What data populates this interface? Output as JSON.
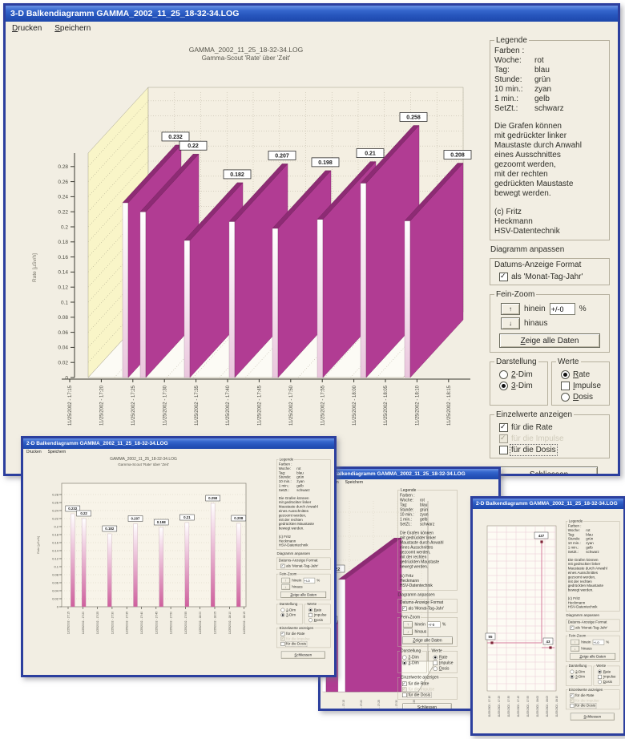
{
  "windows": {
    "main": {
      "title": "3-D Balkendiagramm GAMMA_2002_11_25_18-32-34.LOG",
      "menu": [
        {
          "label": "Drucken"
        },
        {
          "label": "Speichern"
        }
      ]
    },
    "bars2d": {
      "title": "2-D Balkendiagramm GAMMA_2002_11_25_18-32-34.LOG",
      "menu": [
        {
          "label": "Drucken"
        },
        {
          "label": "Speichern"
        }
      ]
    },
    "zoom3d": {
      "title": "3-D Balkendiagramm GAMMA_2002_11_25_18-32-34.LOG",
      "menu": [
        {
          "label": "Drucken"
        },
        {
          "label": "Speichern"
        }
      ]
    },
    "line2d": {
      "title": "2-D Balkendiagramm GAMMA_2002_11_25_18-32-34.LOG",
      "menu": [
        {
          "label": "Drucken"
        },
        {
          "label": "Speichern"
        }
      ]
    }
  },
  "panel": {
    "legende": {
      "caption": "Legende",
      "farben_label": "Farben :",
      "rows": [
        {
          "label": "Woche:",
          "color": "rot"
        },
        {
          "label": "Tag:",
          "color": "blau"
        },
        {
          "label": "Stunde:",
          "color": "grün"
        },
        {
          "label": "10 min.:",
          "color": "zyan"
        },
        {
          "label": "1  min.:",
          "color": "gelb"
        },
        {
          "label": "SetZt.:",
          "color": "schwarz"
        }
      ],
      "hint_lines": [
        "Die Grafen können",
        "mit gedrückter linker",
        "Maustaste durch Anwahl",
        "eines Ausschnittes",
        "gezoomt werden,",
        "mit der rechten",
        "gedrückten Maustaste",
        "bewegt werden."
      ],
      "copyright": [
        "(c) Fritz",
        "Heckmann",
        "HSV-Datentechnik"
      ]
    },
    "anpassen": {
      "caption": "Diagramm anpassen",
      "datums_label": "Datums-Anzeige Format",
      "datums_checkbox": "als 'Monat-Tag-Jahr'",
      "datums_checked": true,
      "feinzoom": {
        "caption": "Fein-Zoom",
        "up_icon": "↑",
        "down_icon": "↓",
        "in_label": "hinein",
        "out_label": "hinaus",
        "percent_value": "+/-0",
        "percent_suffix": "%",
        "show_all": "Zeige alle Daten"
      },
      "darstellung": {
        "caption": "Darstellung",
        "options": [
          {
            "label": "2-Dim",
            "selected": false
          },
          {
            "label": "3-Dim",
            "selected": true
          }
        ]
      },
      "werte": {
        "caption": "Werte",
        "options": [
          {
            "label": "Rate",
            "selected": true
          },
          {
            "label": "Impulse",
            "selected": false
          },
          {
            "label": "Dosis",
            "selected": false
          }
        ]
      },
      "einzelwerte": {
        "caption": "Einzelwerte anzeigen",
        "items": [
          {
            "label": "für die Rate",
            "checked": true,
            "disabled": false
          },
          {
            "label": "für die Impulse",
            "checked": true,
            "disabled": true
          },
          {
            "label": "für die Dosis",
            "checked": false,
            "disabled": false
          }
        ]
      },
      "close_button": "Schliessen"
    }
  },
  "chart_data": [
    {
      "id": "rate-3d",
      "type": "bar",
      "style": "3d",
      "title": "GAMMA_2002_11_25_18-32-34.LOG",
      "subtitle": "Gamma-Scout 'Rate' über 'Zeit'",
      "ylabel": "Rate [µSv/h]",
      "ylim": [
        0,
        0.28
      ],
      "ytick_step": 0.02,
      "grid": true,
      "x_tick_labels": [
        "11/25/2002 - 17:15",
        "11/25/2002 - 17:20",
        "11/25/2002 - 17:25",
        "11/25/2002 - 17:30",
        "11/25/2002 - 17:35",
        "11/25/2002 - 17:40",
        "11/25/2002 - 17:45",
        "11/25/2002 - 17:50",
        "11/25/2002 - 17:55",
        "11/25/2002 - 18:00",
        "11/25/2002 - 18:05",
        "11/25/2002 - 18:10",
        "11/25/2002 - 18:15"
      ],
      "values": [
        0.232,
        0.22,
        0.182,
        0.207,
        0.198,
        0.21,
        0.258,
        0.208
      ],
      "value_tick_indices": [
        0,
        1,
        3,
        5,
        7,
        9,
        11,
        12
      ],
      "legend_position": "right-panel"
    },
    {
      "id": "rate-2d",
      "type": "bar",
      "style": "2d",
      "title": "GAMMA_2002_11_25_18-32-34.LOG",
      "subtitle": "Gamma-Scout 'Rate' über 'Zeit'",
      "ylabel": "Rate [µSv/h]",
      "ylim": [
        0,
        0.28
      ],
      "ytick_step": 0.02,
      "grid": true,
      "x_tick_labels": [
        "11/25/2002 - 17:15",
        "11/25/2002 - 17:20",
        "11/25/2002 - 17:25",
        "11/25/2002 - 17:30",
        "11/25/2002 - 17:35",
        "11/25/2002 - 17:40",
        "11/25/2002 - 17:45",
        "11/25/2002 - 17:50",
        "11/25/2002 - 17:55",
        "11/25/2002 - 18:00",
        "11/25/2002 - 18:05",
        "11/25/2002 - 18:10",
        "11/25/2002 - 18:15"
      ],
      "values": [
        0.232,
        0.22,
        0.182,
        0.207,
        0.198,
        0.21,
        0.258,
        0.208
      ],
      "value_tick_indices": [
        0,
        1,
        3,
        5,
        7,
        9,
        11,
        12
      ],
      "legend_position": "right-panel"
    },
    {
      "id": "rate-3d-zoom",
      "type": "bar",
      "style": "3d-zoom",
      "values": [
        0.232,
        0.22
      ],
      "x_tick_labels": [
        "11/25/2002 - 17:15",
        "11/25/2002 - 17:20",
        "11/25/2002 - 17:25",
        "11/25/2002 - 17:30",
        "11/25/2002 - 17:35"
      ],
      "legend_position": "right-panel"
    },
    {
      "id": "impulse-2d-line",
      "type": "line",
      "marker": "square",
      "point_labels": [
        "437",
        "55",
        "43"
      ],
      "x_tick_labels": [
        "11/25/2002 - 17:15",
        "11/25/2002 - 17:25",
        "11/25/2002 - 17:35",
        "11/25/2002 - 17:45",
        "11/25/2002 - 17:55",
        "11/25/2002 - 18:00",
        "11/25/2002 - 18:05",
        "11/25/2002 - 18:15"
      ],
      "legend_position": "right-panel"
    }
  ],
  "colors": {
    "bar_face": "#b13c93",
    "bar_top": "#8d2b74",
    "bar_strip": "#eac6dd",
    "wall_yellow": "#f9f5c8",
    "back_wall": "#f4efe2",
    "floor": "#fcfbf5",
    "grid_line": "#c2bcaa",
    "pink_grid": "#eac9d4",
    "line_accent": "#d77d9e",
    "marker": "#7e2436",
    "titlebar_blue": "#2756bd",
    "client_bg": "#f2eee3"
  }
}
